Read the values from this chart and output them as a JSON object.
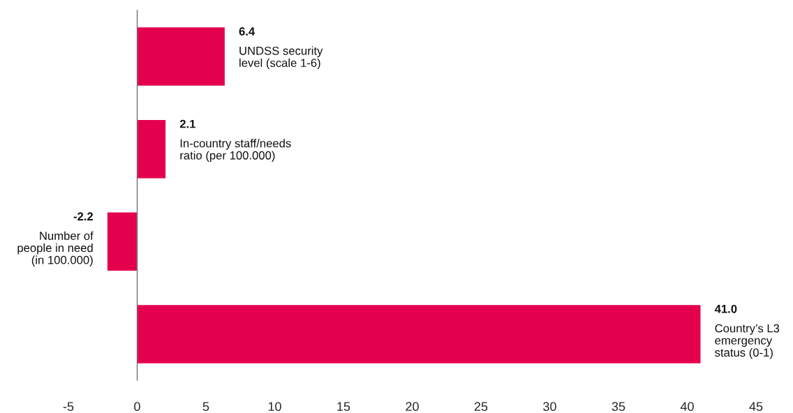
{
  "chart_data": {
    "type": "bar",
    "orientation": "horizontal",
    "categories": [
      "UNDSS security\nlevel (scale 1-6)",
      "In-country staff/needs\nratio (per 100.000)",
      "Number of\npeople in need\n(in 100.000)",
      "Country’s L3\nemergency\nstatus (0-1)"
    ],
    "values": [
      6.4,
      2.1,
      -2.2,
      41.0
    ],
    "value_labels": [
      "6.4",
      "2.1",
      "-2.2",
      "41.0"
    ],
    "color": "#e4004f",
    "xlim": [
      -5,
      45
    ],
    "xticks": [
      -5,
      0,
      5,
      10,
      15,
      20,
      25,
      30,
      35,
      40,
      45
    ],
    "legend": false
  }
}
